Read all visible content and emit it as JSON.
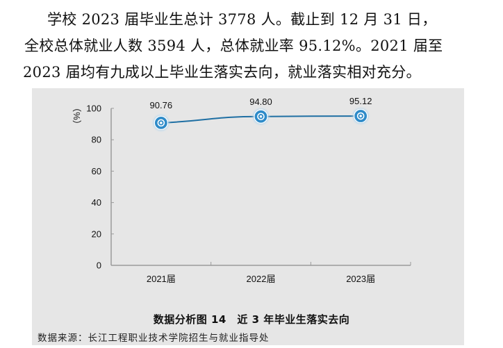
{
  "paragraph": {
    "line1": "学校 2023 届毕业生总计 3778 人。截止到 12 月 31 日，",
    "line2": "全校总体就业人数 3594 人，总体就业率 95.12%。2021 届至",
    "line3": "2023 届均有九成以上毕业生落实去向，就业落实相对充分。"
  },
  "figure": {
    "caption": "数据分析图 14　近 3 年毕业生落实去向",
    "source": "数据来源：长江工程职业技术学院招生与就业指导处"
  },
  "chart_data": {
    "type": "line",
    "title": "数据分析图 14 近 3 年毕业生落实去向",
    "categories": [
      "2021届",
      "2022届",
      "2023届"
    ],
    "values": [
      90.76,
      94.8,
      95.12
    ],
    "value_labels": [
      "90.76",
      "94.80",
      "95.12"
    ],
    "xlabel": "",
    "ylabel": "（%）",
    "ylim": [
      0,
      100
    ],
    "yticks": [
      0,
      20,
      40,
      60,
      80,
      100
    ],
    "grid": false,
    "legend": null,
    "line_color": "#1f6fa3",
    "marker_color": "#2e8bc9",
    "background": "#e6e6e6"
  }
}
